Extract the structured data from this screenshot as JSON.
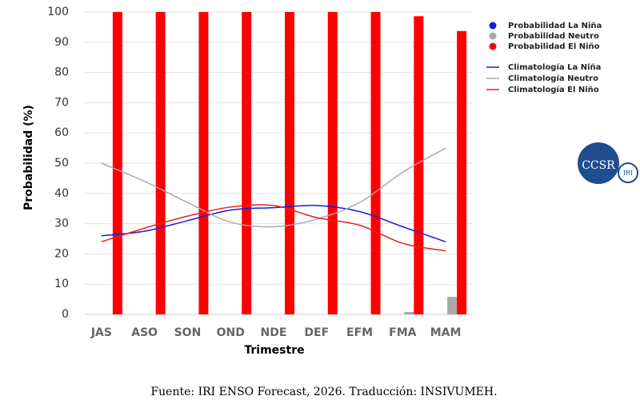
{
  "chart_data": {
    "type": "bar",
    "categories": [
      "JAS",
      "ASO",
      "SON",
      "OND",
      "NDE",
      "DEF",
      "EFM",
      "FMA",
      "MAM"
    ],
    "series": [
      {
        "name": "Probabilidad La Niña",
        "type": "bar",
        "color": "#1a1adb",
        "values": [
          0,
          0,
          0,
          0,
          0,
          0,
          0,
          0,
          0
        ]
      },
      {
        "name": "Probabilidad Neutro",
        "type": "bar",
        "color": "#aaaaaa",
        "values": [
          0,
          0,
          0,
          0,
          0,
          0,
          0,
          0.8,
          5.8
        ]
      },
      {
        "name": "Probabilidad El Niño",
        "type": "bar",
        "color": "#ff0000",
        "values": [
          100,
          100,
          100,
          100,
          100,
          100,
          100,
          98.6,
          93.7
        ]
      },
      {
        "name": "Climatología La Niña",
        "type": "line",
        "color": "#1a1adb",
        "values": [
          26,
          27.5,
          31,
          34.5,
          35.3,
          36,
          34,
          29,
          24
        ]
      },
      {
        "name": "Climatología Neutro",
        "type": "line",
        "color": "#aaaaaa",
        "values": [
          50,
          44,
          37,
          30.5,
          29,
          31.5,
          37,
          47,
          55
        ]
      },
      {
        "name": "Climatología El Niño",
        "type": "line",
        "color": "#e8211d",
        "values": [
          24,
          28.5,
          32.5,
          35.5,
          36,
          32,
          29.5,
          23.5,
          21
        ]
      }
    ],
    "ylim": [
      0,
      100
    ],
    "yticks": [
      0,
      10,
      20,
      30,
      40,
      50,
      60,
      70,
      80,
      90,
      100
    ],
    "grid": true,
    "y_label": "Probabilidad (%)",
    "x_label": "Trimestre",
    "legend": "right",
    "source": "Fuente: IRI ENSO Forecast, 2026. Traducción: INSIVUMEH.",
    "logo": {
      "main": "CCSR",
      "small": "IRI"
    }
  }
}
